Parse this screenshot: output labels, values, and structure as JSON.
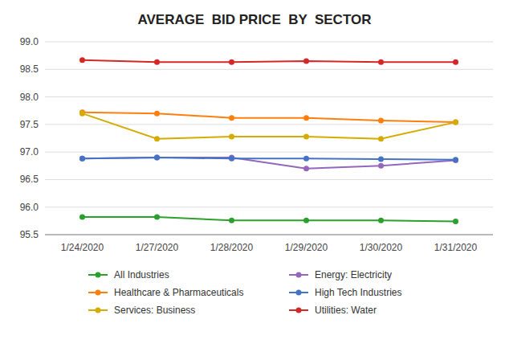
{
  "chart_data": {
    "type": "line",
    "title": "AVERAGE  BID PRICE  BY  SECTOR",
    "categories": [
      "1/24/2020",
      "1/27/2020",
      "1/28/2020",
      "1/29/2020",
      "1/30/2020",
      "1/31/2020"
    ],
    "series": [
      {
        "name": "All Industries",
        "color": "#2ca02c",
        "marker": "circle",
        "values": [
          95.82,
          95.82,
          95.76,
          95.76,
          95.76,
          95.74
        ]
      },
      {
        "name": "Healthcare & Pharmaceuticals",
        "color": "#ff7f0e",
        "marker": "circle",
        "values": [
          97.72,
          97.7,
          97.62,
          97.62,
          97.57,
          97.54
        ]
      },
      {
        "name": "Services: Business",
        "color": "#d4ac00",
        "marker": "circle",
        "values": [
          97.7,
          97.24,
          97.28,
          97.28,
          97.24,
          97.54
        ]
      },
      {
        "name": "Energy: Electricity",
        "color": "#9467bd",
        "marker": "circle",
        "values": [
          96.88,
          96.9,
          96.9,
          96.7,
          96.75,
          96.85
        ]
      },
      {
        "name": "High Tech Industries",
        "color": "#4472c4",
        "marker": "circle",
        "values": [
          96.88,
          96.9,
          96.88,
          96.88,
          96.87,
          96.86
        ]
      },
      {
        "name": "Utilities: Water",
        "color": "#d62728",
        "marker": "circle",
        "values": [
          98.67,
          98.63,
          98.63,
          98.65,
          98.63,
          98.63
        ]
      }
    ],
    "ylim": [
      95.5,
      99.0
    ],
    "yticks": [
      95.5,
      {
        "value": 96.0,
        "label": "96.0"
      },
      96.5,
      {
        "value": 97.0,
        "label": "97.0"
      },
      97.5,
      {
        "value": 98.0,
        "label": "98.0"
      },
      98.5,
      {
        "value": 99.0,
        "label": "99.0"
      }
    ],
    "grid": true,
    "legend": "bottom"
  }
}
